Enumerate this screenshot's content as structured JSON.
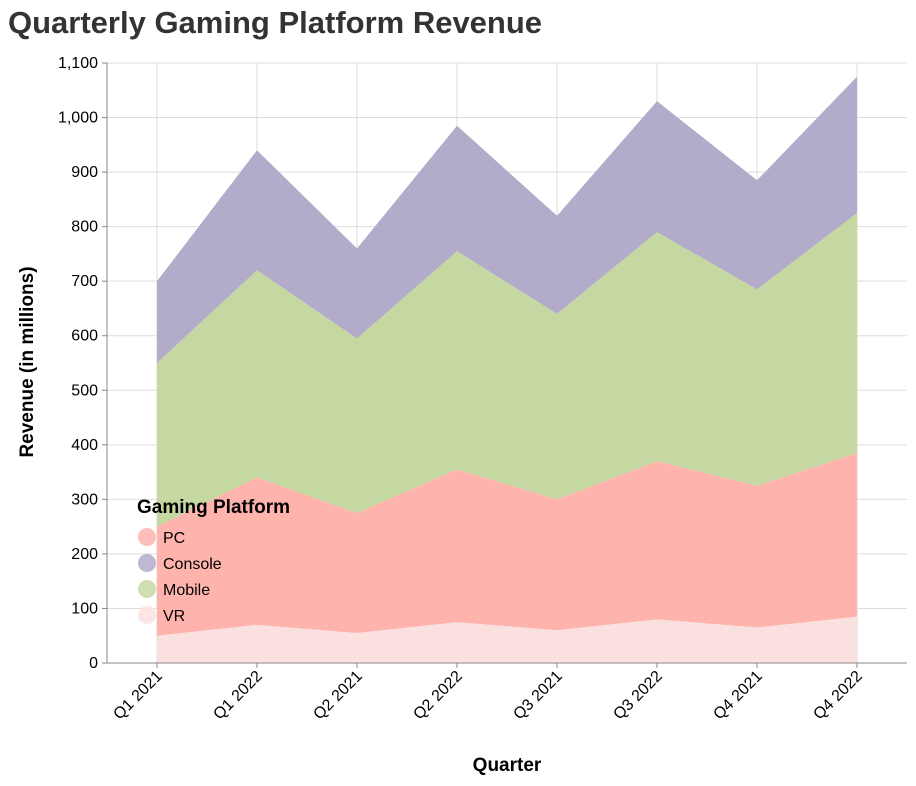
{
  "chart_data": {
    "type": "area",
    "stacked": true,
    "title": "Quarterly Gaming Platform Revenue",
    "xlabel": "Quarter",
    "ylabel": "Revenue (in millions)",
    "ylim": [
      0,
      1100
    ],
    "yticks": [
      0,
      100,
      200,
      300,
      400,
      500,
      600,
      700,
      800,
      900,
      1000,
      1100
    ],
    "ytick_labels": [
      "0",
      "100",
      "200",
      "300",
      "400",
      "500",
      "600",
      "700",
      "800",
      "900",
      "1,000",
      "1,100"
    ],
    "grid": true,
    "legend": {
      "title": "Gaming Platform",
      "placement": "bottom-left"
    },
    "categories": [
      "Q1 2021",
      "Q1 2022",
      "Q2 2021",
      "Q2 2022",
      "Q3 2021",
      "Q3 2022",
      "Q4 2021",
      "Q4 2022"
    ],
    "series": [
      {
        "name": "VR",
        "color": "#fbe0e0",
        "values": [
          50,
          70,
          55,
          75,
          60,
          80,
          65,
          85
        ]
      },
      {
        "name": "PC",
        "color": "#ffb3ad",
        "values": [
          200,
          270,
          220,
          280,
          240,
          290,
          260,
          300
        ]
      },
      {
        "name": "Mobile",
        "color": "#c5d8a2",
        "values": [
          300,
          380,
          320,
          400,
          340,
          420,
          360,
          440
        ]
      },
      {
        "name": "Console",
        "color": "#b3abca",
        "values": [
          150,
          220,
          165,
          230,
          180,
          240,
          200,
          250
        ]
      }
    ],
    "legend_order": [
      "PC",
      "Console",
      "Mobile",
      "VR"
    ]
  }
}
